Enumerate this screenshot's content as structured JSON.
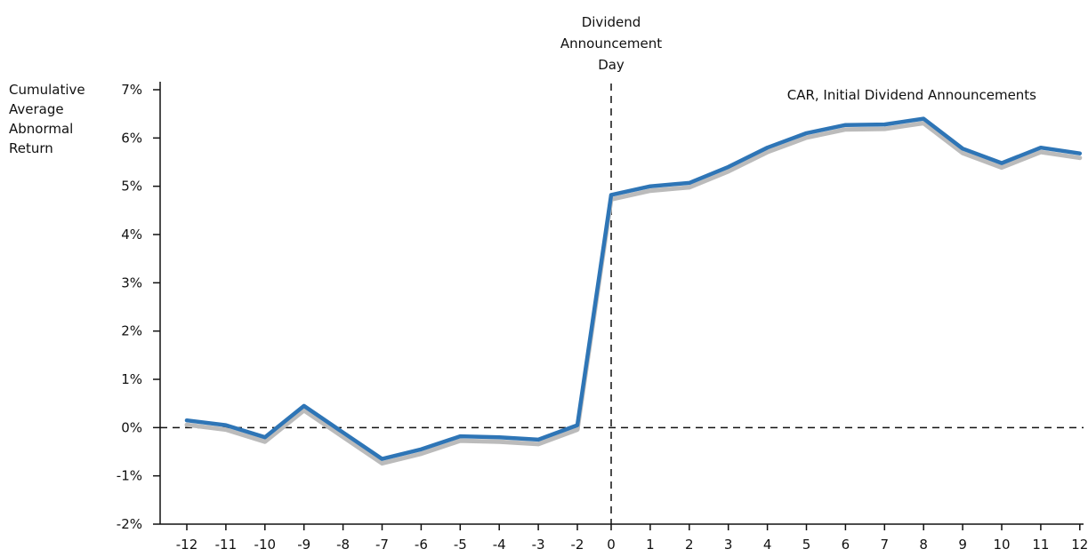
{
  "chart_data": {
    "type": "line",
    "title": "",
    "ylabel": [
      "Cumulative",
      "Average",
      "Abnormal",
      "Return"
    ],
    "xlabel": "",
    "series_label": "CAR, Initial Dividend Announcements",
    "event_label": [
      "Dividend",
      "Announcement",
      "Day"
    ],
    "x": [
      -12,
      -11,
      -10,
      -9,
      -8,
      -7,
      -6,
      -5,
      -4,
      -3,
      -2,
      0,
      1,
      2,
      3,
      4,
      5,
      6,
      7,
      8,
      9,
      10,
      11,
      12
    ],
    "x_tick_labels": [
      "-12",
      "-11",
      "-10",
      "-9",
      "-8",
      "-7",
      "-6",
      "-5",
      "-4",
      "-3",
      "-2",
      "0",
      "1",
      "2",
      "3",
      "4",
      "5",
      "6",
      "7",
      "8",
      "9",
      "10",
      "11",
      "12"
    ],
    "series": [
      {
        "values": [
          0.15,
          0.05,
          -0.2,
          0.45,
          -0.1,
          -0.65,
          -0.45,
          -0.18,
          -0.2,
          -0.25,
          0.05,
          4.82,
          5.0,
          5.07,
          5.4,
          5.8,
          6.1,
          6.27,
          6.28,
          6.4,
          5.78,
          5.48,
          5.8,
          5.68
        ],
        "color": "#2e75b6",
        "shadow_color": "#bbbbbb"
      }
    ],
    "ylim": [
      -2,
      7
    ],
    "y_ticks": [
      -2,
      -1,
      0,
      1,
      2,
      3,
      4,
      5,
      6,
      7
    ],
    "y_tick_labels": [
      "-2%",
      "-1%",
      "0%",
      "1%",
      "2%",
      "3%",
      "4%",
      "5%",
      "6%",
      "7%"
    ],
    "zero_line": "dashed",
    "event_line": "dashed",
    "grid": false
  }
}
